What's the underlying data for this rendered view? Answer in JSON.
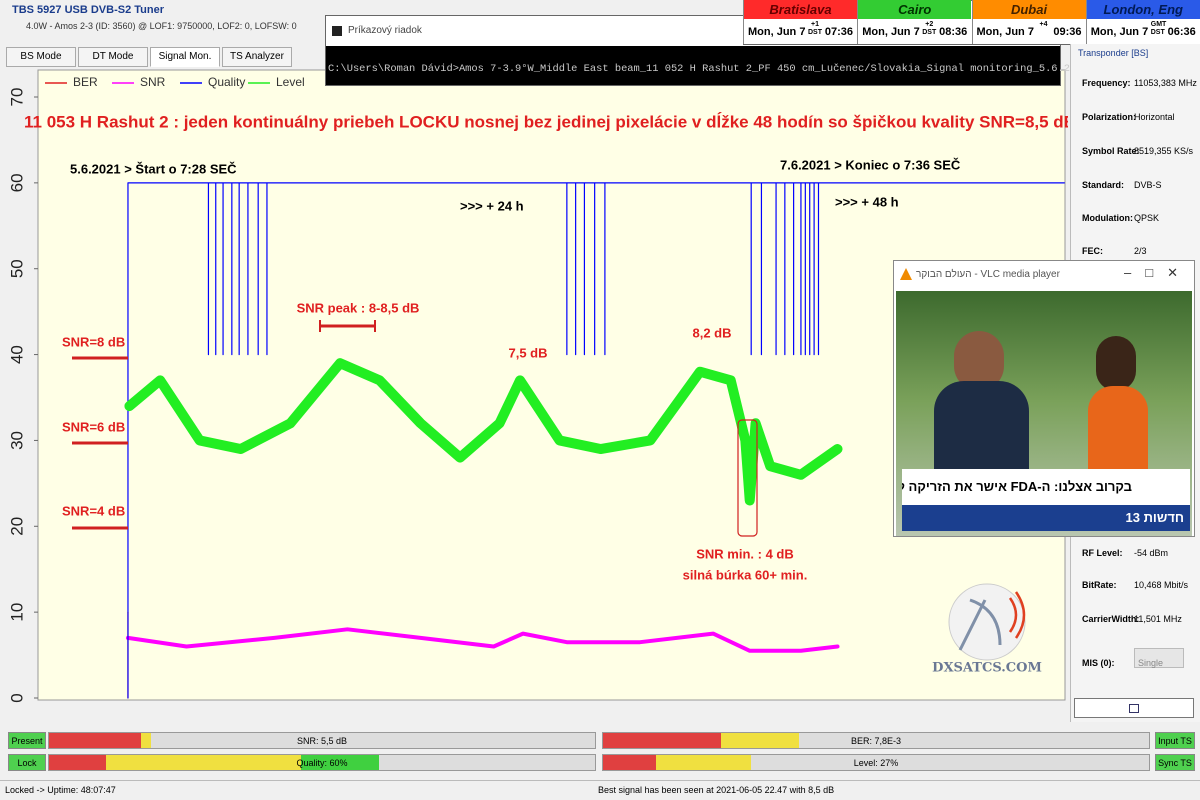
{
  "window": {
    "title": "TBS 5927 USB DVB-S2 Tuner",
    "subtitle": "4.0W - Amos 2-3 (ID: 3560) @ LOF1: 9750000, LOF2: 0, LOFSW: 0"
  },
  "tabs": [
    "BS Mode",
    "DT Mode",
    "Signal Mon.",
    "TS Analyzer (OK)"
  ],
  "clocks": [
    {
      "city": "Bratislava",
      "date": "Mon, Jun 7",
      "offset": "+1",
      "dst": "DST",
      "time": "07:36"
    },
    {
      "city": "Cairo",
      "date": "Mon, Jun 7",
      "offset": "+2",
      "dst": "DST",
      "time": "08:36"
    },
    {
      "city": "Dubai",
      "date": "Mon, Jun 7",
      "offset": "+4",
      "time": "09:36"
    },
    {
      "city": "London, Eng",
      "date": "Mon, Jun 7",
      "offset": "GMT",
      "dst": "DST",
      "time": "06:36"
    }
  ],
  "cmd": {
    "title": "Príkazový riadok",
    "text": "C:\\Users\\Roman Dávid>Amos 7-3.9°W_Middle East beam_11 052 H Rashut 2_PF 450 cm_Lučenec/Slovakia_Signal monitoring_5.6.2021+_by dxsatcs.com"
  },
  "transponder": {
    "title": "Transponder [BS]",
    "fields": [
      {
        "label": "Frequency:",
        "value": "11053,383 MHz"
      },
      {
        "label": "Polarization:",
        "value": "Horizontal"
      },
      {
        "label": "Symbol Rate:",
        "value": "8519,355 KS/s"
      },
      {
        "label": "Standard:",
        "value": "DVB-S"
      },
      {
        "label": "Modulation:",
        "value": "QPSK"
      },
      {
        "label": "FEC:",
        "value": "2/3"
      },
      {
        "label": "RF Level:",
        "value": "-54 dBm"
      },
      {
        "label": "BitRate:",
        "value": "10,468 Mbit/s"
      },
      {
        "label": "CarrierWidth:",
        "value": "11,501 MHz"
      },
      {
        "label": "MIS (0):",
        "value": "Single"
      }
    ]
  },
  "vlc": {
    "title": "העולם הבוקר - VLC media player",
    "headline": "בקרוב אצלנו: ה-FDA אישר את הזריקה לירידה במשקל",
    "channel": "חדשות 13"
  },
  "meters": {
    "present": "Present",
    "lock": "Lock",
    "snr": "SNR: 5,5 dB",
    "ber": "BER: 7,8E-3",
    "quality": "Quality: 60%",
    "level": "Level: 27%",
    "input": "Input TS",
    "sync": "Sync TS"
  },
  "status": [
    "Locked -> Uptime: 48:07:47",
    "Best signal has been seen at 2021-06-05 22.47 with 8,5 dB"
  ],
  "chart_data": {
    "type": "line",
    "ylim": [
      0,
      70
    ],
    "yticks": [
      0,
      10,
      20,
      30,
      40,
      50,
      60,
      70
    ],
    "xlim": [
      -6.15,
      64.05
    ],
    "series": [
      {
        "name": "BER",
        "color": "#e02020",
        "x": [
          0,
          0
        ],
        "values": [
          0,
          10
        ]
      },
      {
        "name": "SNR",
        "color": "#ff00ff",
        "x": [
          0,
          4,
          10,
          15,
          20,
          25,
          27,
          30,
          35,
          40,
          42.5,
          46,
          48.5
        ],
        "values": [
          7,
          6,
          7,
          8,
          7,
          6,
          7.5,
          6.5,
          6.5,
          7.5,
          5.5,
          5.5,
          6
        ]
      },
      {
        "name": "Quality",
        "color": "#0000ff",
        "x": [
          0,
          0,
          5.5,
          5.5,
          5.5,
          6,
          6,
          6,
          6.5,
          6.5,
          6.5,
          7.1,
          7.1,
          7.1,
          7.6,
          7.6,
          7.6,
          8.2,
          8.2,
          8.2,
          8.9,
          8.9,
          8.9,
          9.5,
          9.5,
          9.5,
          30,
          30,
          30,
          30.6,
          30.6,
          30.6,
          31.2,
          31.2,
          31.2,
          31.9,
          31.9,
          31.9,
          32.6,
          32.6,
          32.6,
          42.6,
          42.6,
          42.6,
          43.3,
          43.3,
          43.3,
          44.3,
          44.3,
          44.3,
          44.9,
          44.9,
          44.9,
          45.5,
          45.5,
          45.5,
          46,
          46,
          46,
          46.3,
          46.3,
          46.3,
          46.6,
          46.6,
          46.6,
          46.9,
          46.9,
          46.9,
          47.2,
          47.2,
          47.2,
          64
        ],
        "values": [
          0,
          60,
          60,
          40,
          60,
          60,
          40,
          60,
          60,
          40,
          60,
          60,
          40,
          60,
          60,
          40,
          60,
          60,
          40,
          60,
          60,
          40,
          60,
          60,
          40,
          60,
          60,
          40,
          60,
          60,
          40,
          60,
          60,
          40,
          60,
          60,
          40,
          60,
          60,
          40,
          60,
          60,
          40,
          60,
          60,
          40,
          60,
          60,
          40,
          60,
          60,
          40,
          60,
          60,
          40,
          60,
          60,
          40,
          60,
          60,
          40,
          60,
          60,
          40,
          60,
          60,
          40,
          60,
          60,
          40,
          60,
          60
        ]
      },
      {
        "name": "Level",
        "color": "#22ee22",
        "x": [
          0.1,
          2.2,
          4.9,
          7.7,
          11.1,
          14.5,
          17.2,
          20,
          22.7,
          25.4,
          26.8,
          29.5,
          32.3,
          35.7,
          39.1,
          41.2,
          42.2,
          42.5,
          42.9,
          43.9,
          46,
          48.5
        ],
        "values": [
          34,
          37,
          30,
          29,
          32,
          39,
          37,
          32,
          28,
          32,
          37,
          30,
          29,
          30,
          38,
          37,
          30,
          23,
          32,
          27,
          26,
          29
        ]
      }
    ],
    "annotations": [
      "11 053 H Rashut 2 : jeden kontinuálny priebeh LOCKU nosnej bez jedinej pixelácie v dĺžke 48 hodín so špičkou kvality SNR=8,5 dB",
      "5.6.2021 > Štart o 7:28 SEČ",
      "7.6.2021 > Koniec o 7:36 SEČ",
      ">>> + 24 h",
      ">>> + 48 h",
      "SNR peak : 8-8,5 dB",
      "7,5 dB",
      "8,2 dB",
      "SNR=8 dB",
      "SNR=6 dB",
      "SNR=4 dB",
      "SNR min. : 4 dB",
      "silná búrka 60+ min."
    ],
    "logo": "DXSATCS.COM"
  }
}
